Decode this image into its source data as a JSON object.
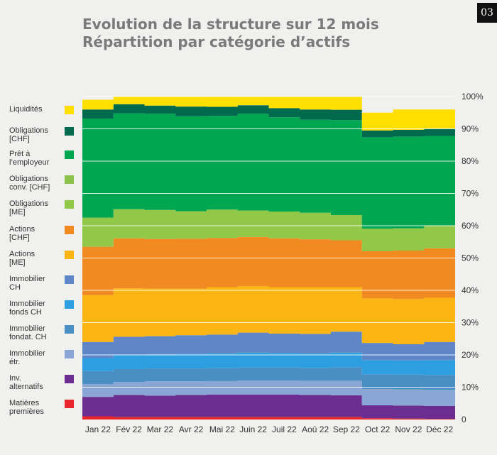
{
  "page_number": "03",
  "title_line1": "Evolution de la structure sur 12 mois",
  "title_line2": "Répartition par catégorie d’actifs",
  "chart_data": {
    "type": "area",
    "stacked": true,
    "normalized_to_100": true,
    "grid": true,
    "legend_placement": "left",
    "ylim": [
      0,
      100
    ],
    "y_ticks": [
      "0",
      "10%",
      "20%",
      "30%",
      "40%",
      "50%",
      "60%",
      "70%",
      "80%",
      "90%",
      "100%"
    ],
    "categories": [
      "Jan 22",
      "Fév 22",
      "Mar 22",
      "Avr 22",
      "Mai 22",
      "Juin 22",
      "Juil 22",
      "Aoû 22",
      "Sep 22",
      "Oct 22",
      "Nov 22",
      "Déc 22"
    ],
    "series": [
      {
        "name": "Matières premières",
        "color": "#e8262c",
        "values": [
          1.0,
          0.8,
          0.8,
          0.8,
          0.8,
          0.8,
          0.8,
          0.8,
          0.8,
          0.4,
          0.3,
          0.2
        ]
      },
      {
        "name": "Inv. alternatifs",
        "color": "#6b2e90",
        "values": [
          6.0,
          6.8,
          6.6,
          6.8,
          6.9,
          6.9,
          6.9,
          6.8,
          6.7,
          4.0,
          4.0,
          4.0
        ]
      },
      {
        "name": "Immobilier étr.",
        "color": "#8aa6d6",
        "values": [
          4.0,
          4.0,
          4.4,
          4.2,
          4.2,
          4.4,
          4.4,
          4.4,
          4.5,
          5.0,
          5.0,
          5.0
        ]
      },
      {
        "name": "Immobilier fondat. CH",
        "color": "#4a8fc4",
        "values": [
          4.0,
          4.0,
          4.0,
          4.0,
          4.0,
          4.0,
          4.0,
          4.0,
          4.2,
          4.6,
          4.6,
          4.6
        ]
      },
      {
        "name": "Immobilier fonds CH",
        "color": "#2d9ee0",
        "values": [
          4.0,
          4.4,
          4.4,
          4.5,
          4.6,
          4.6,
          4.5,
          4.5,
          4.5,
          4.4,
          4.4,
          4.6
        ]
      },
      {
        "name": "Immobilier CH",
        "color": "#5f87c8",
        "values": [
          5.0,
          5.6,
          5.6,
          5.8,
          5.8,
          6.2,
          6.0,
          6.0,
          6.5,
          5.3,
          5.0,
          5.6
        ]
      },
      {
        "name": "Actions [ME]",
        "color": "#fbb514",
        "values": [
          14.5,
          15.0,
          14.7,
          14.4,
          14.7,
          14.4,
          14.4,
          14.5,
          13.8,
          13.8,
          14.0,
          13.7
        ]
      },
      {
        "name": "Actions [CHF]",
        "color": "#f18a21",
        "values": [
          15.0,
          15.5,
          15.4,
          15.5,
          15.2,
          15.2,
          15.1,
          14.8,
          14.5,
          14.6,
          15.0,
          15.3
        ]
      },
      {
        "name": "Obligations [ME]",
        "color": "#92c848",
        "values": [
          9.0,
          9.0,
          9.0,
          8.5,
          8.8,
          8.2,
          8.3,
          8.2,
          7.8,
          7.0,
          6.9,
          7.0
        ]
      },
      {
        "name": "Obligations conv. [CHF]",
        "color": "#8bc34a",
        "values": [
          0,
          0,
          0,
          0,
          0,
          0,
          0,
          0,
          0,
          0,
          0,
          0
        ]
      },
      {
        "name": "Prêt à l’employeur",
        "color": "#00a650",
        "values": [
          30.7,
          29.7,
          29.8,
          29.4,
          29.0,
          30.0,
          29.2,
          28.8,
          29.4,
          28.3,
          28.4,
          27.8
        ]
      },
      {
        "name": "Obligations [CHF]",
        "color": "#006a4e",
        "values": [
          2.8,
          2.8,
          2.5,
          3.0,
          2.8,
          2.6,
          2.8,
          3.2,
          3.2,
          2.1,
          2.1,
          2.3
        ]
      },
      {
        "name": "Liquidités",
        "color": "#ffdf00",
        "values": [
          3.0,
          2.4,
          2.8,
          3.1,
          3.2,
          2.7,
          3.6,
          4.0,
          4.1,
          5.5,
          6.3,
          5.9
        ]
      }
    ]
  },
  "legend": [
    {
      "label": "Liquidités",
      "color": "#ffdf00"
    },
    {
      "label": "Obligations [CHF]",
      "color": "#006a4e"
    },
    {
      "label": "Prêt à l’employeur",
      "color": "#00a650"
    },
    {
      "label": "Obligations conv. [CHF]",
      "color": "#8bc34a"
    },
    {
      "label": "Obligations [ME]",
      "color": "#92c848"
    },
    {
      "label": "Actions [CHF]",
      "color": "#f18a21"
    },
    {
      "label": "Actions [ME]",
      "color": "#fbb514"
    },
    {
      "label": "Immobilier CH",
      "color": "#5f87c8"
    },
    {
      "label": "Immobilier fonds CH",
      "color": "#2d9ee0"
    },
    {
      "label": "Immobilier fondat. CH",
      "color": "#4a8fc4"
    },
    {
      "label": "Immobilier étr.",
      "color": "#8aa6d6"
    },
    {
      "label": "Inv. alternatifs",
      "color": "#6b2e90"
    },
    {
      "label": "Matières premières",
      "color": "#e8262c"
    }
  ]
}
